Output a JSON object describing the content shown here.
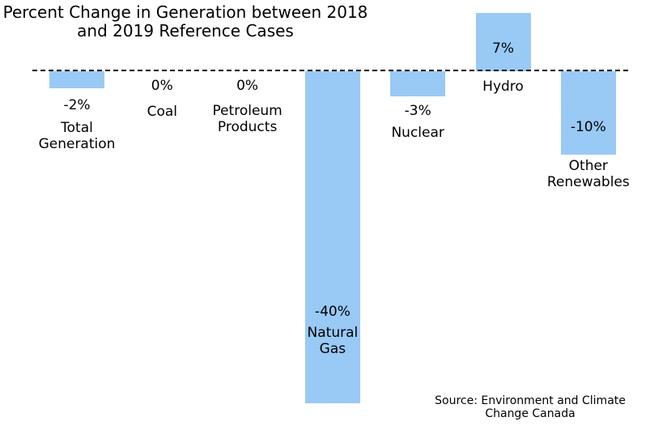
{
  "chart_data": {
    "type": "bar",
    "title": "Percent Change in Generation between 2018\nand 2019 Reference Cases",
    "categories": [
      "Total\nGeneration",
      "Coal",
      "Petroleum\nProducts",
      "Natural\nGas",
      "Nuclear",
      "Hydro",
      "Other\nRenewables"
    ],
    "values": [
      -2,
      0,
      0,
      -40,
      -3,
      7,
      -10
    ],
    "value_labels": [
      "-2%",
      "0%",
      "0%",
      "-40%",
      "-3%",
      "7%",
      "-10%"
    ],
    "color": "#99c9f5",
    "source": "Source: Environment and Climate\nChange Canada"
  }
}
